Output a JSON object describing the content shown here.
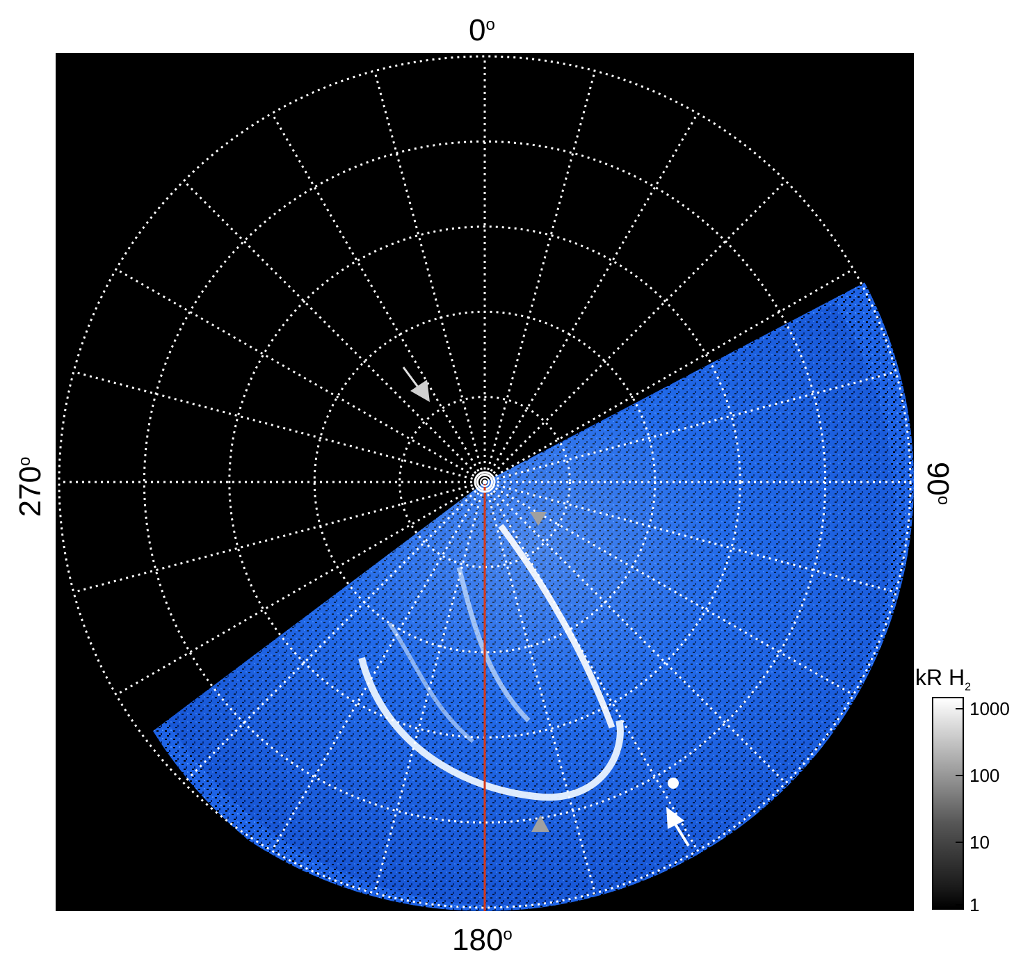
{
  "labels": {
    "top": "0",
    "right": "90",
    "bottom": "180",
    "left": "270",
    "degree_symbol": "o"
  },
  "colorbar": {
    "title": "kR H",
    "title_subscript": "2",
    "ticks": [
      "1000",
      "100",
      "10",
      "1"
    ]
  },
  "colors": {
    "background": "#000000",
    "grid": "#ffffff",
    "aurora_dim": "#0a4fd6",
    "aurora_bright": "#ffffff",
    "meridian_line": "#d63a1a",
    "arrow_white": "#ffffff",
    "arrow_grey": "#a0a0a0"
  }
}
